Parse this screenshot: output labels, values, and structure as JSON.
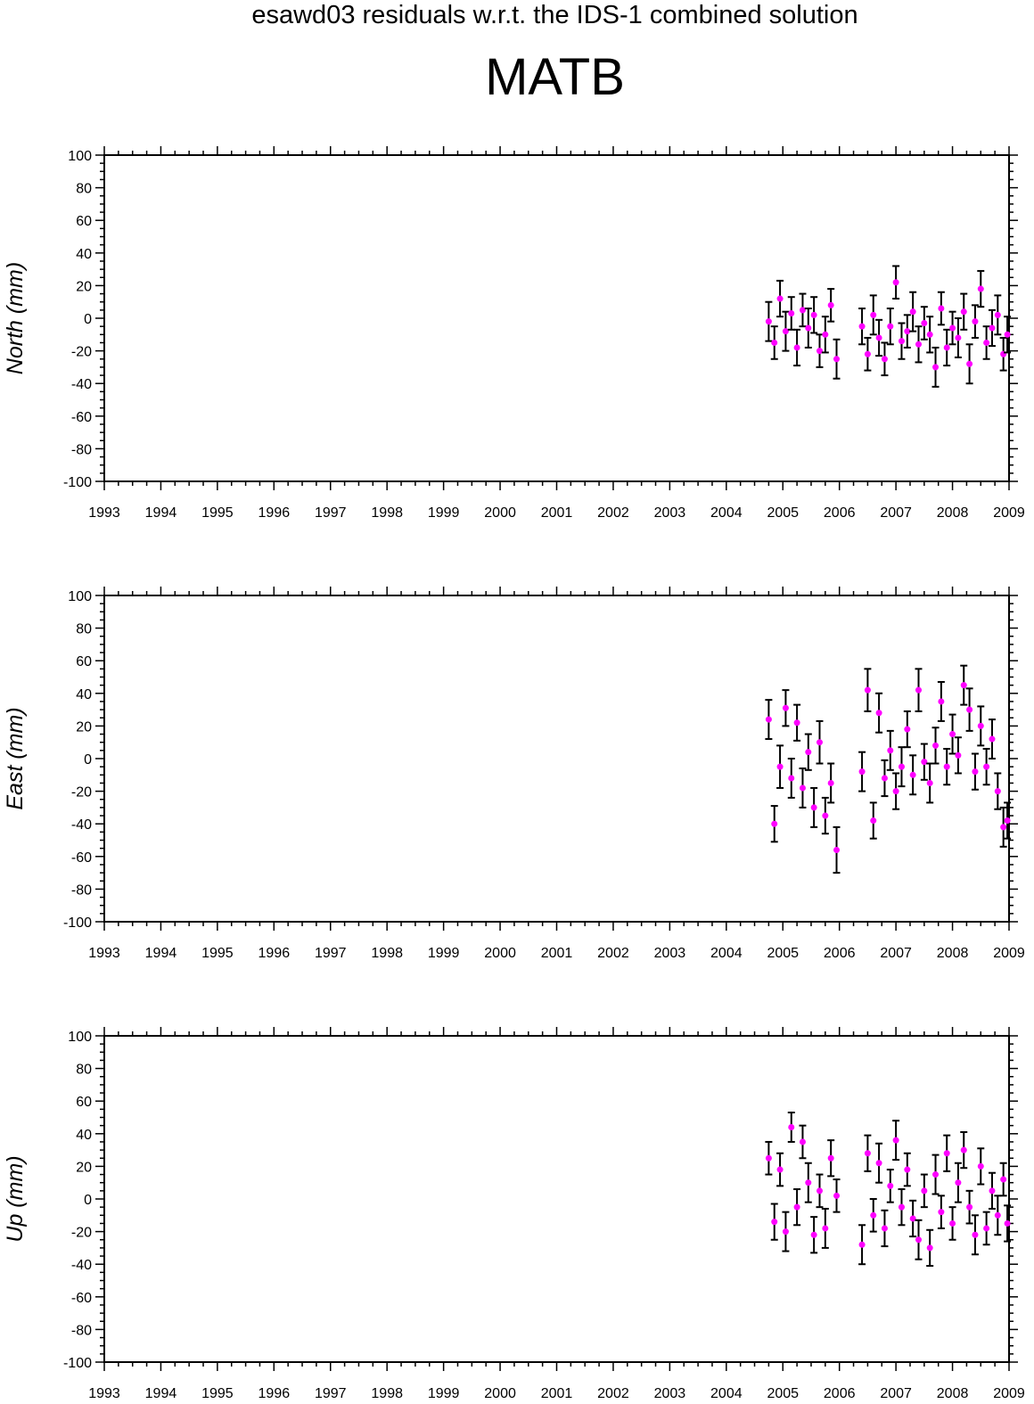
{
  "header": {
    "subtitle": "esawd03 residuals w.r.t. the IDS-1 combined solution",
    "title": "MATB"
  },
  "colors": {
    "point": "#ff00ff",
    "errorbar": "#000000",
    "axis": "#000000"
  },
  "chart_data": [
    {
      "type": "scatter",
      "ylabel": "North (mm)",
      "xlim": [
        1993,
        2009
      ],
      "ylim": [
        -100,
        100
      ],
      "x_ticks": [
        1993,
        1994,
        1995,
        1996,
        1997,
        1998,
        1999,
        2000,
        2001,
        2002,
        2003,
        2004,
        2005,
        2006,
        2007,
        2008,
        2009
      ],
      "y_ticks": [
        100,
        80,
        60,
        40,
        20,
        0,
        -20,
        -40,
        -60,
        -80,
        -100
      ],
      "grid": false,
      "series": [
        {
          "x": [
            2004.75,
            2004.85,
            2004.95,
            2005.05,
            2005.15,
            2005.25,
            2005.35,
            2005.45,
            2005.55,
            2005.65,
            2005.75,
            2005.85,
            2005.95,
            2006.4,
            2006.5,
            2006.6,
            2006.7,
            2006.8,
            2006.9,
            2007.0,
            2007.1,
            2007.2,
            2007.3,
            2007.4,
            2007.5,
            2007.6,
            2007.7,
            2007.8,
            2007.9,
            2008.0,
            2008.1,
            2008.2,
            2008.3,
            2008.4,
            2008.5,
            2008.6,
            2008.7,
            2008.8,
            2008.9,
            2008.97
          ],
          "y": [
            -2,
            -15,
            12,
            -8,
            3,
            -18,
            5,
            -6,
            2,
            -20,
            -10,
            8,
            -25,
            -5,
            -22,
            2,
            -12,
            -25,
            -5,
            22,
            -14,
            -8,
            4,
            -16,
            -3,
            -10,
            -30,
            6,
            -18,
            -6,
            -12,
            4,
            -28,
            -2,
            18,
            -15,
            -6,
            2,
            -22,
            -10
          ],
          "err": [
            12,
            10,
            11,
            12,
            10,
            11,
            10,
            12,
            11,
            10,
            11,
            10,
            12,
            11,
            10,
            12,
            11,
            10,
            11,
            10,
            11,
            10,
            12,
            11,
            10,
            11,
            12,
            10,
            11,
            10,
            12,
            11,
            12,
            10,
            11,
            10,
            11,
            12,
            10,
            11
          ]
        }
      ]
    },
    {
      "type": "scatter",
      "ylabel": "East (mm)",
      "xlim": [
        1993,
        2009
      ],
      "ylim": [
        -100,
        100
      ],
      "x_ticks": [
        1993,
        1994,
        1995,
        1996,
        1997,
        1998,
        1999,
        2000,
        2001,
        2002,
        2003,
        2004,
        2005,
        2006,
        2007,
        2008,
        2009
      ],
      "y_ticks": [
        100,
        80,
        60,
        40,
        20,
        0,
        -20,
        -40,
        -60,
        -80,
        -100
      ],
      "grid": false,
      "series": [
        {
          "x": [
            2004.75,
            2004.85,
            2004.95,
            2005.05,
            2005.15,
            2005.25,
            2005.35,
            2005.45,
            2005.55,
            2005.65,
            2005.75,
            2005.85,
            2005.95,
            2006.4,
            2006.5,
            2006.6,
            2006.7,
            2006.8,
            2006.9,
            2007.0,
            2007.1,
            2007.2,
            2007.3,
            2007.4,
            2007.5,
            2007.6,
            2007.7,
            2007.8,
            2007.9,
            2008.0,
            2008.1,
            2008.2,
            2008.3,
            2008.4,
            2008.5,
            2008.6,
            2008.7,
            2008.8,
            2008.9,
            2008.97
          ],
          "y": [
            24,
            -40,
            -5,
            31,
            -12,
            22,
            -18,
            4,
            -30,
            10,
            -35,
            -15,
            -56,
            -8,
            42,
            -38,
            28,
            -12,
            5,
            -20,
            -5,
            18,
            -10,
            42,
            -2,
            -15,
            8,
            35,
            -5,
            15,
            2,
            45,
            30,
            -8,
            20,
            -5,
            12,
            -20,
            -42,
            -38
          ],
          "err": [
            12,
            11,
            13,
            11,
            12,
            11,
            12,
            11,
            12,
            13,
            11,
            12,
            14,
            12,
            13,
            11,
            12,
            11,
            12,
            11,
            12,
            11,
            12,
            13,
            11,
            12,
            11,
            12,
            11,
            12,
            11,
            12,
            13,
            11,
            12,
            11,
            12,
            11,
            12,
            11
          ]
        }
      ]
    },
    {
      "type": "scatter",
      "ylabel": "Up (mm)",
      "xlim": [
        1993,
        2009
      ],
      "ylim": [
        -100,
        100
      ],
      "x_ticks": [
        1993,
        1994,
        1995,
        1996,
        1997,
        1998,
        1999,
        2000,
        2001,
        2002,
        2003,
        2004,
        2005,
        2006,
        2007,
        2008,
        2009
      ],
      "y_ticks": [
        100,
        80,
        60,
        40,
        20,
        0,
        -20,
        -40,
        -60,
        -80,
        -100
      ],
      "grid": false,
      "series": [
        {
          "x": [
            2004.75,
            2004.85,
            2004.95,
            2005.05,
            2005.15,
            2005.25,
            2005.35,
            2005.45,
            2005.55,
            2005.65,
            2005.75,
            2005.85,
            2005.95,
            2006.4,
            2006.5,
            2006.6,
            2006.7,
            2006.8,
            2006.9,
            2007.0,
            2007.1,
            2007.2,
            2007.3,
            2007.4,
            2007.5,
            2007.6,
            2007.7,
            2007.8,
            2007.9,
            2008.0,
            2008.1,
            2008.2,
            2008.3,
            2008.4,
            2008.5,
            2008.6,
            2008.7,
            2008.8,
            2008.9,
            2008.97
          ],
          "y": [
            25,
            -14,
            18,
            -20,
            44,
            -5,
            35,
            10,
            -22,
            5,
            -18,
            25,
            2,
            -28,
            28,
            -10,
            22,
            -18,
            8,
            36,
            -5,
            18,
            -12,
            -25,
            5,
            -30,
            15,
            -8,
            28,
            -15,
            10,
            30,
            -5,
            -22,
            20,
            -18,
            5,
            -10,
            12,
            -15
          ],
          "err": [
            10,
            11,
            10,
            12,
            9,
            11,
            10,
            12,
            11,
            10,
            12,
            11,
            10,
            12,
            11,
            10,
            12,
            11,
            10,
            12,
            11,
            10,
            11,
            12,
            10,
            11,
            12,
            10,
            11,
            10,
            12,
            11,
            10,
            12,
            11,
            10,
            11,
            12,
            10,
            11
          ]
        }
      ]
    }
  ]
}
